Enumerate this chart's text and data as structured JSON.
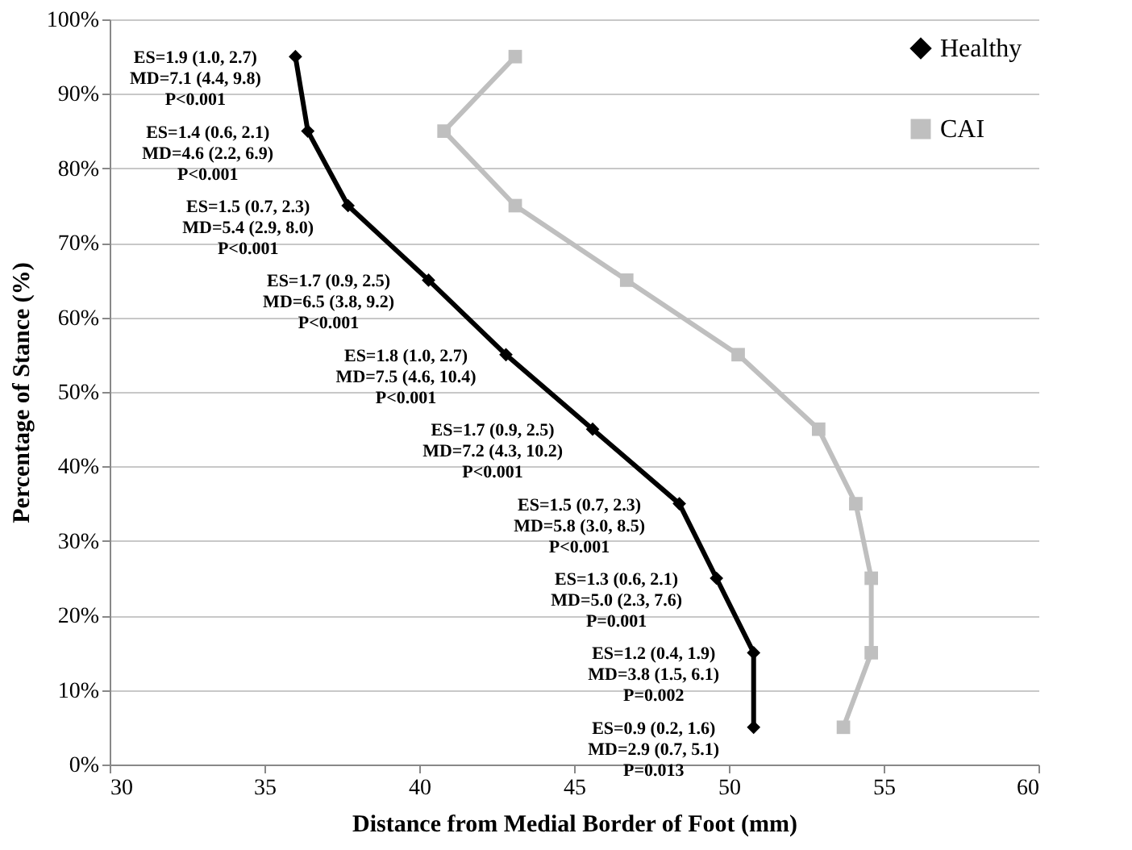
{
  "chart_data": {
    "type": "line",
    "xlabel": "Distance from Medial Border of Foot (mm)",
    "ylabel": "Percentage of Stance (%)",
    "series": [
      {
        "name": "Healthy",
        "color": "#000000",
        "marker": "diamond",
        "x": [
          36.0,
          36.4,
          37.7,
          40.3,
          42.8,
          45.6,
          48.4,
          49.6,
          50.8,
          50.8
        ],
        "values": [
          95,
          85,
          75,
          65,
          55,
          45,
          35,
          25,
          15,
          5
        ]
      },
      {
        "name": "CAI",
        "color": "#bfbfbf",
        "marker": "square",
        "x": [
          43.1,
          40.8,
          43.1,
          46.7,
          50.3,
          52.9,
          54.1,
          54.6,
          54.6,
          53.7
        ],
        "values": [
          95,
          85,
          75,
          65,
          55,
          45,
          35,
          25,
          15,
          5
        ]
      }
    ],
    "xlim": [
      30,
      60
    ],
    "xticks": [
      30,
      35,
      40,
      45,
      50,
      55,
      60
    ],
    "ylim": [
      0,
      100
    ],
    "yticks": [
      {
        "value": 0,
        "label": "0%"
      },
      {
        "value": 10,
        "label": "10%"
      },
      {
        "value": 20,
        "label": "20%"
      },
      {
        "value": 30,
        "label": "30%"
      },
      {
        "value": 40,
        "label": "40%"
      },
      {
        "value": 50,
        "label": "50%"
      },
      {
        "value": 60,
        "label": "60%"
      },
      {
        "value": 70,
        "label": "70%"
      },
      {
        "value": 80,
        "label": "80%"
      },
      {
        "value": 90,
        "label": "90%"
      },
      {
        "value": 100,
        "label": "100%"
      }
    ],
    "grid": "y",
    "legend": "top right",
    "annotations": [
      {
        "text": "ES=1.9 (1.0, 2.7)\nMD=7.1 (4.4, 9.8)\nP<0.001",
        "x": 36.0,
        "y": 95
      },
      {
        "text": "ES=1.4 (0.6, 2.1)\nMD=4.6 (2.2, 6.9)\nP<0.001",
        "x": 36.4,
        "y": 85
      },
      {
        "text": "ES=1.5 (0.7, 2.3)\nMD=5.4 (2.9, 8.0)\nP<0.001",
        "x": 37.7,
        "y": 75
      },
      {
        "text": "ES=1.7 (0.9, 2.5)\nMD=6.5 (3.8, 9.2)\nP<0.001",
        "x": 40.3,
        "y": 65
      },
      {
        "text": "ES=1.8 (1.0, 2.7)\nMD=7.5 (4.6, 10.4)\nP<0.001",
        "x": 42.8,
        "y": 55
      },
      {
        "text": "ES=1.7 (0.9, 2.5)\nMD=7.2 (4.3, 10.2)\nP<0.001",
        "x": 45.6,
        "y": 45
      },
      {
        "text": "ES=1.5 (0.7, 2.3)\nMD=5.8 (3.0, 8.5)\nP<0.001",
        "x": 48.4,
        "y": 35
      },
      {
        "text": "ES=1.3 (0.6, 2.1)\nMD=5.0 (2.3, 7.6)\nP=0.001",
        "x": 49.6,
        "y": 25
      },
      {
        "text": "ES=1.2 (0.4, 1.9)\nMD=3.8 (1.5, 6.1)\nP=0.002",
        "x": 50.8,
        "y": 15
      },
      {
        "text": "ES=0.9 (0.2, 1.6)\nMD=2.9 (0.7, 5.1)\nP=0.013",
        "x": 50.8,
        "y": 5
      }
    ]
  }
}
